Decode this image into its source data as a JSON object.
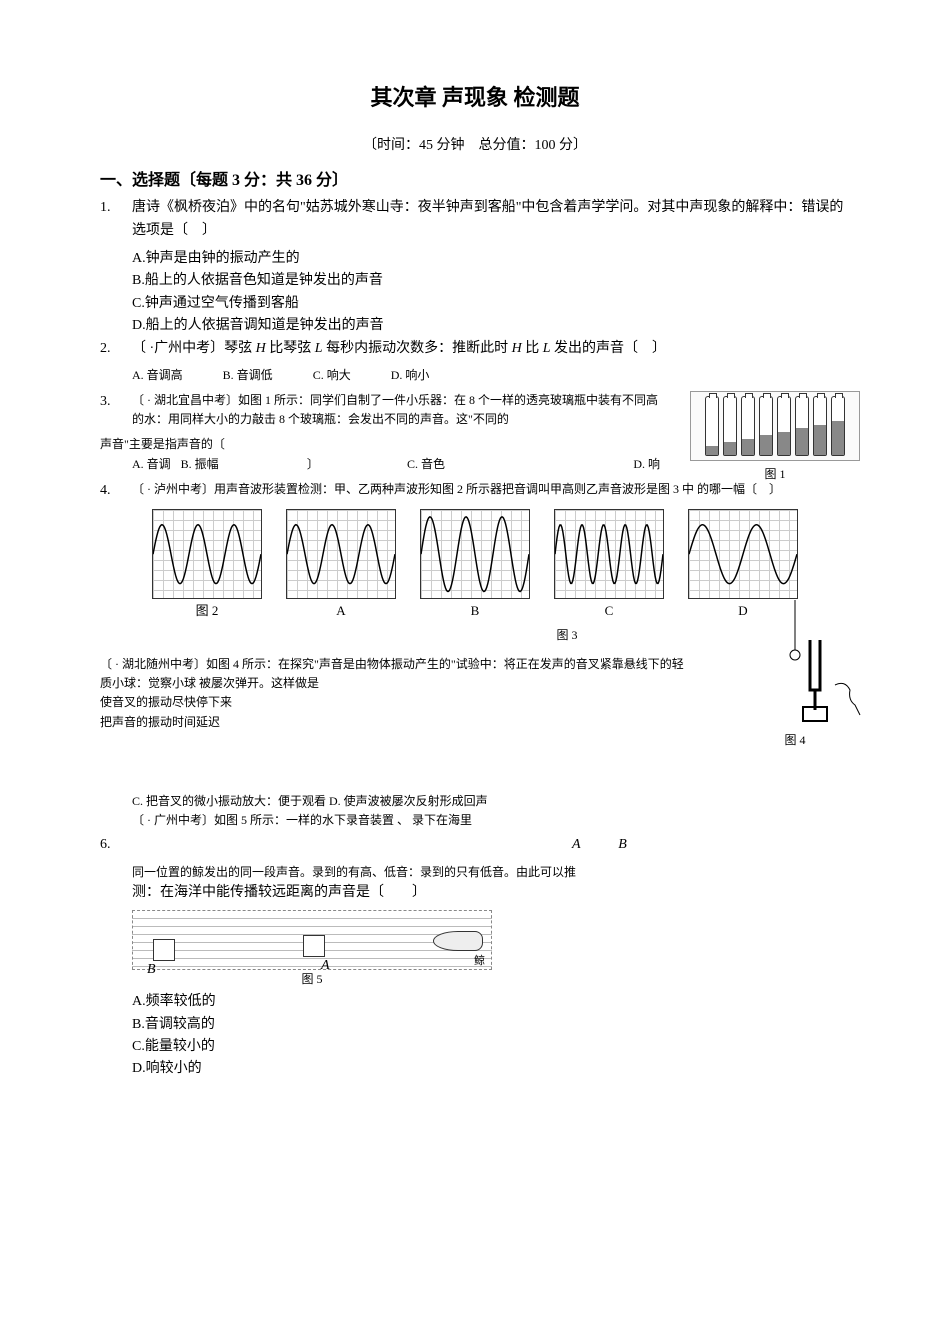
{
  "title": "其次章 声现象 检测题",
  "subtitle": "〔时间：45 分钟　总分值：100 分〕",
  "section1": {
    "header": "一、选择题〔每题 3 分：共 36 分〕"
  },
  "q1": {
    "num": "1.",
    "stem": "唐诗《枫桥夜泊》中的名句\"姑苏城外寒山寺：夜半钟声到客船\"中包含着声学学问。对其中声现象的解释中：错误的选项是〔　〕",
    "A": "A.钟声是由钟的振动产生的",
    "B": "B.船上的人依据音色知道是钟发出的声音",
    "C": "C.钟声通过空气传播到客船",
    "D": "D.船上的人依据音调知道是钟发出的声音"
  },
  "q2": {
    "num": "2.",
    "stem_a": "〔 ·广州中考〕琴弦 ",
    "stem_b": " 比琴弦 ",
    "stem_c": " 每秒内振动次数多：推断此时 ",
    "stem_d": " 比 ",
    "stem_e": " 发出的声音〔　〕",
    "H": "H",
    "L": "L",
    "A": "A. 音调高",
    "B": "B. 音调低",
    "C": "C. 响大",
    "D": "D. 响小"
  },
  "q3": {
    "num": "3.",
    "stem1": "〔 · 湖北宜昌中考〕如图 1 所示：同学们自制了一件小乐器：在 8 个一样的透亮玻璃瓶中装有不同高的水：用同样大小的力敲击 8 个玻璃瓶：会发出不同的声音。这\"不同的",
    "stem2": "声音\"主要是指声音的〔",
    "stem3": "〕",
    "A": "A. 音调",
    "B": "B. 振幅",
    "C": "C. 音色",
    "D": "D. 响",
    "fig_label": "图 1",
    "bottles_heights": [
      16,
      22,
      28,
      34,
      40,
      46,
      52,
      58
    ]
  },
  "q4": {
    "num": "4.",
    "stem": "〔 · 泸州中考〕用声音波形装置检测：甲、乙两种声波形知图 2 所示器把音调叫甲高则乙声音波形是图 3 中 的哪一幅〔　〕",
    "fig2": "图 2",
    "fig3": "图 3",
    "labels": {
      "A": "A",
      "B": "B",
      "C": "C",
      "D": "D"
    },
    "waves": {
      "fig2": {
        "cycles": 3,
        "amp": 30
      },
      "A": {
        "cycles": 3,
        "amp": 30
      },
      "B": {
        "cycles": 3,
        "amp": 38
      },
      "C": {
        "cycles": 5,
        "amp": 30
      },
      "D": {
        "cycles": 2,
        "amp": 30
      }
    }
  },
  "q5": {
    "stem1": "〔 · 湖北随州中考〕如图 4 所示：在探究\"声音是由物体振动产生的\"试验中：将正在发声的音叉紧靠悬线下的轻质小球：觉察小球 被屡次弹开。这样做是",
    "stem2": "使音叉的振动尽快停下来",
    "stem3": "把声音的振动时间延迟",
    "C": "C. 把音叉的微小振动放大：便于观看",
    "D": "D. 使声波被屡次反射形成回声",
    "fig_label": "图 4"
  },
  "q6": {
    "num": "6.",
    "intro": "〔 · 广州中考〕如图 5 所示：一样的水下录音装置 、 录下在海里",
    "ab": "A　B",
    "line1": "同一位置的鲸发出的同一段声音。录到的有高、低音：录到的只有低音。由此可以推",
    "line2": "测：在海洋中能传播较远距离的声音是〔　　〕",
    "fig_label": "图 5",
    "A": "A.频率较低的",
    "B": "B.音调较高的",
    "C": "C.能量较小的",
    "D": "D.响较小的"
  }
}
